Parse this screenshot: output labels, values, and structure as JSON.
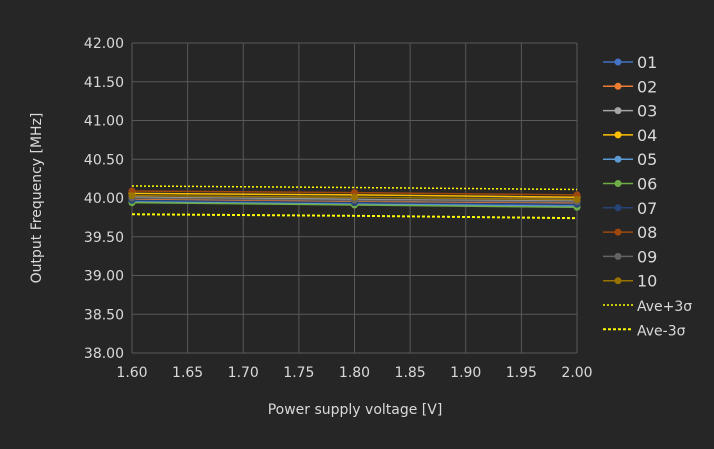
{
  "chart_data": {
    "type": "line",
    "title": "",
    "xlabel": "Power supply voltage [V]",
    "ylabel": "Output Frequency [MHz]",
    "xlim": [
      1.6,
      2.0
    ],
    "ylim": [
      38.0,
      42.0
    ],
    "xticks": [
      "1.60",
      "1.65",
      "1.70",
      "1.75",
      "1.80",
      "1.85",
      "1.90",
      "1.95",
      "2.00"
    ],
    "yticks": [
      "38.00",
      "38.50",
      "39.00",
      "39.50",
      "40.00",
      "40.50",
      "41.00",
      "41.50",
      "42.00"
    ],
    "grid": true,
    "legend_position": "right",
    "x": [
      1.6,
      1.8,
      2.0
    ],
    "series": [
      {
        "name": "01",
        "color": "#4472c4",
        "values": [
          39.96,
          39.93,
          39.9
        ],
        "marker": true
      },
      {
        "name": "02",
        "color": "#ed7d31",
        "values": [
          39.98,
          39.95,
          39.93
        ],
        "marker": true
      },
      {
        "name": "03",
        "color": "#a5a5a5",
        "values": [
          40.01,
          39.98,
          39.96
        ],
        "marker": true
      },
      {
        "name": "04",
        "color": "#ffc000",
        "values": [
          40.06,
          40.04,
          40.01
        ],
        "marker": true
      },
      {
        "name": "05",
        "color": "#5b9bd5",
        "values": [
          39.95,
          39.92,
          39.89
        ],
        "marker": true
      },
      {
        "name": "06",
        "color": "#70ad47",
        "values": [
          39.94,
          39.91,
          39.88
        ],
        "marker": true
      },
      {
        "name": "07",
        "color": "#264478",
        "values": [
          39.97,
          39.94,
          39.92
        ],
        "marker": true
      },
      {
        "name": "08",
        "color": "#9e480e",
        "values": [
          40.09,
          40.07,
          40.04
        ],
        "marker": true
      },
      {
        "name": "09",
        "color": "#636363",
        "values": [
          40.0,
          39.97,
          39.95
        ],
        "marker": true
      },
      {
        "name": "10",
        "color": "#997300",
        "values": [
          40.03,
          40.01,
          39.98
        ],
        "marker": true
      },
      {
        "name": "Ave+3σ",
        "color": "#ffff00",
        "values": [
          40.155,
          40.135,
          40.11
        ],
        "dashed": "fine"
      },
      {
        "name": "Ave-3σ",
        "color": "#ffff00",
        "values": [
          39.79,
          39.77,
          39.74
        ],
        "dashed": "coarse"
      }
    ]
  },
  "colors": {
    "background": "#262626",
    "grid": "#595959",
    "text": "#d9d9d9"
  }
}
